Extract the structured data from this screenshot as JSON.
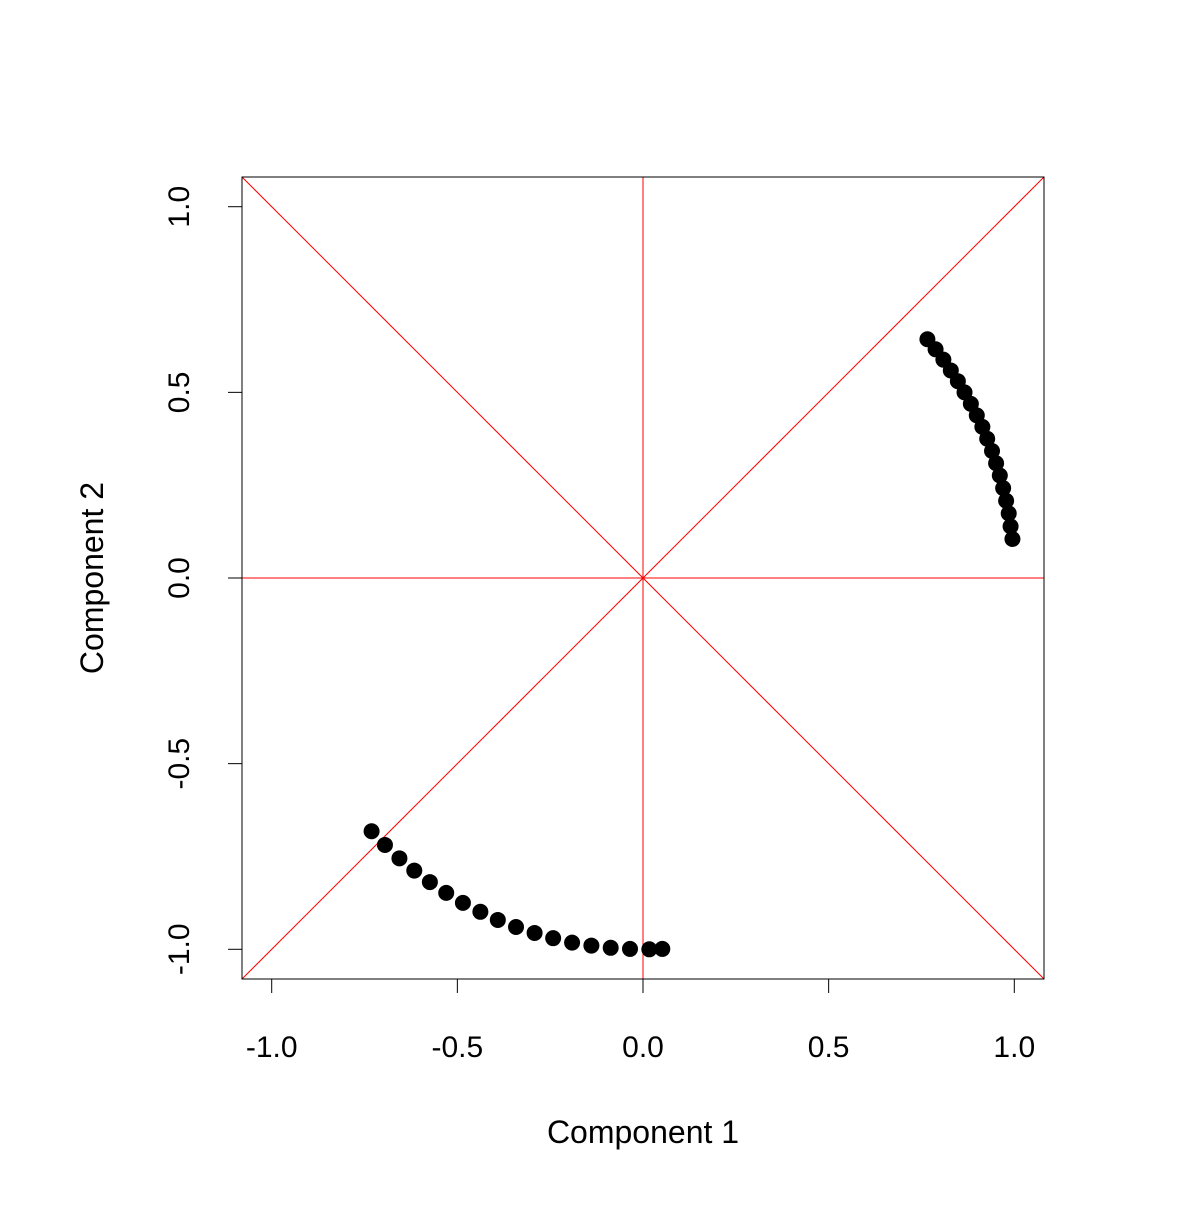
{
  "chart_data": {
    "type": "scatter",
    "x_label": "Component 1",
    "y_label": "Component 2",
    "series": [
      {
        "color": "#000000",
        "x": [
          0.766,
          0.788,
          0.809,
          0.829,
          0.848,
          0.866,
          0.883,
          0.899,
          0.914,
          0.927,
          0.94,
          0.951,
          0.961,
          0.97,
          0.978,
          0.985,
          0.99,
          0.995,
          -0.731,
          -0.695,
          -0.656,
          -0.616,
          -0.574,
          -0.53,
          -0.485,
          -0.438,
          -0.391,
          -0.342,
          -0.292,
          -0.242,
          -0.191,
          -0.139,
          -0.087,
          -0.035,
          0.017,
          0.052
        ],
        "values": [
          0.643,
          0.616,
          0.588,
          0.559,
          0.53,
          0.5,
          0.469,
          0.438,
          0.407,
          0.375,
          0.342,
          0.309,
          0.276,
          0.242,
          0.208,
          0.174,
          0.139,
          0.105,
          -0.682,
          -0.719,
          -0.755,
          -0.788,
          -0.819,
          -0.848,
          -0.875,
          -0.899,
          -0.921,
          -0.94,
          -0.956,
          -0.97,
          -0.982,
          -0.99,
          -0.996,
          -0.999,
          -1.0,
          -0.999
        ]
      }
    ],
    "xlim": [
      -1.08,
      1.08
    ],
    "ylim": [
      -1.08,
      1.08
    ],
    "xticks": [
      {
        "value": -1,
        "label": "-1.0"
      },
      -0.5,
      {
        "value": 0,
        "label": "0.0"
      },
      0.5,
      {
        "value": 1,
        "label": "1.0"
      }
    ],
    "yticks": [
      {
        "value": -1,
        "label": "-1.0"
      },
      -0.5,
      {
        "value": 0,
        "label": "0.0"
      },
      0.5,
      {
        "value": 1,
        "label": "1.0"
      }
    ],
    "reference_lines": {
      "color": "#ff0000",
      "horizontal": [
        0
      ],
      "vertical": [
        0
      ],
      "diagonal": [
        {
          "intercept": 0,
          "slope": 1
        },
        {
          "intercept": 0,
          "slope": -1
        }
      ]
    }
  }
}
